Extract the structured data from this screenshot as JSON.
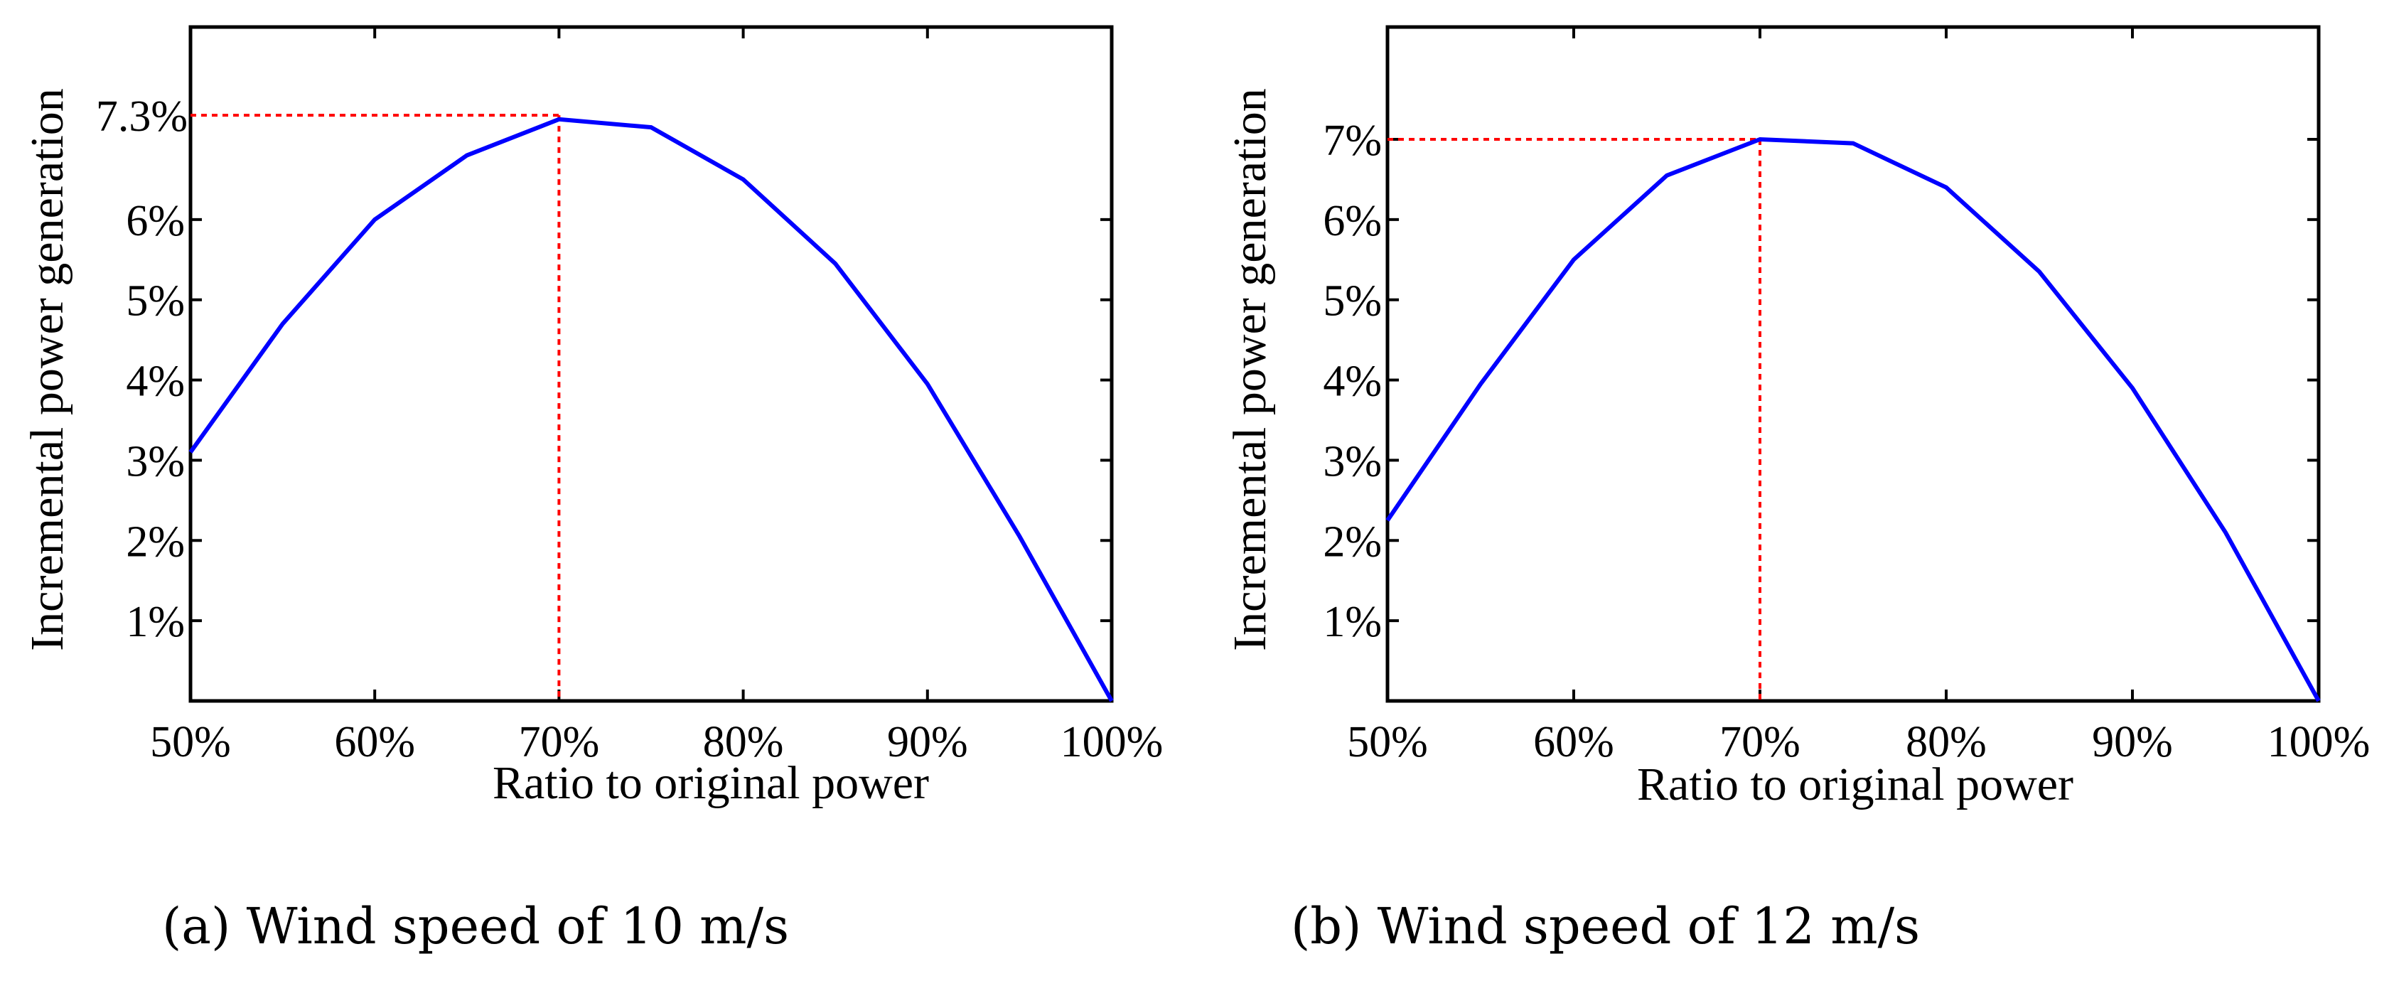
{
  "chart_data": [
    {
      "type": "line",
      "caption": "(a) Wind speed of 10 m/s",
      "xlabel": "Ratio to original power",
      "ylabel": "Incremental power generation",
      "x_ticks": [
        "50%",
        "60%",
        "70%",
        "80%",
        "90%",
        "100%"
      ],
      "y_ticks": [
        "1%",
        "2%",
        "3%",
        "4%",
        "5%",
        "6%"
      ],
      "xlim": [
        50,
        100
      ],
      "ylim": [
        0,
        8.4
      ],
      "series": [
        {
          "name": "Incremental power generation",
          "color": "#0000ff",
          "x": [
            50,
            55,
            60,
            65,
            70,
            75,
            80,
            85,
            90,
            95,
            100
          ],
          "y": [
            3.1,
            4.7,
            6.0,
            6.8,
            7.25,
            7.15,
            6.5,
            5.45,
            3.95,
            2.05,
            0.0
          ]
        }
      ],
      "marker": {
        "x": 70,
        "y": 7.3,
        "label": "7.3%",
        "color": "#ff0000"
      }
    },
    {
      "type": "line",
      "caption": "(b) Wind speed of 12 m/s",
      "xlabel": "Ratio to original power",
      "ylabel": "Incremental power generation",
      "x_ticks": [
        "50%",
        "60%",
        "70%",
        "80%",
        "90%",
        "100%"
      ],
      "y_ticks": [
        "1%",
        "2%",
        "3%",
        "4%",
        "5%",
        "6%",
        "7%"
      ],
      "xlim": [
        50,
        100
      ],
      "ylim": [
        0,
        8.4
      ],
      "series": [
        {
          "name": "Incremental power generation",
          "color": "#0000ff",
          "x": [
            50,
            55,
            60,
            65,
            70,
            75,
            80,
            85,
            90,
            95,
            100
          ],
          "y": [
            2.25,
            3.95,
            5.5,
            6.55,
            7.0,
            6.95,
            6.4,
            5.35,
            3.9,
            2.1,
            0.0
          ]
        }
      ],
      "marker": {
        "x": 70,
        "y": 7.0,
        "label": "",
        "color": "#ff0000"
      }
    }
  ]
}
